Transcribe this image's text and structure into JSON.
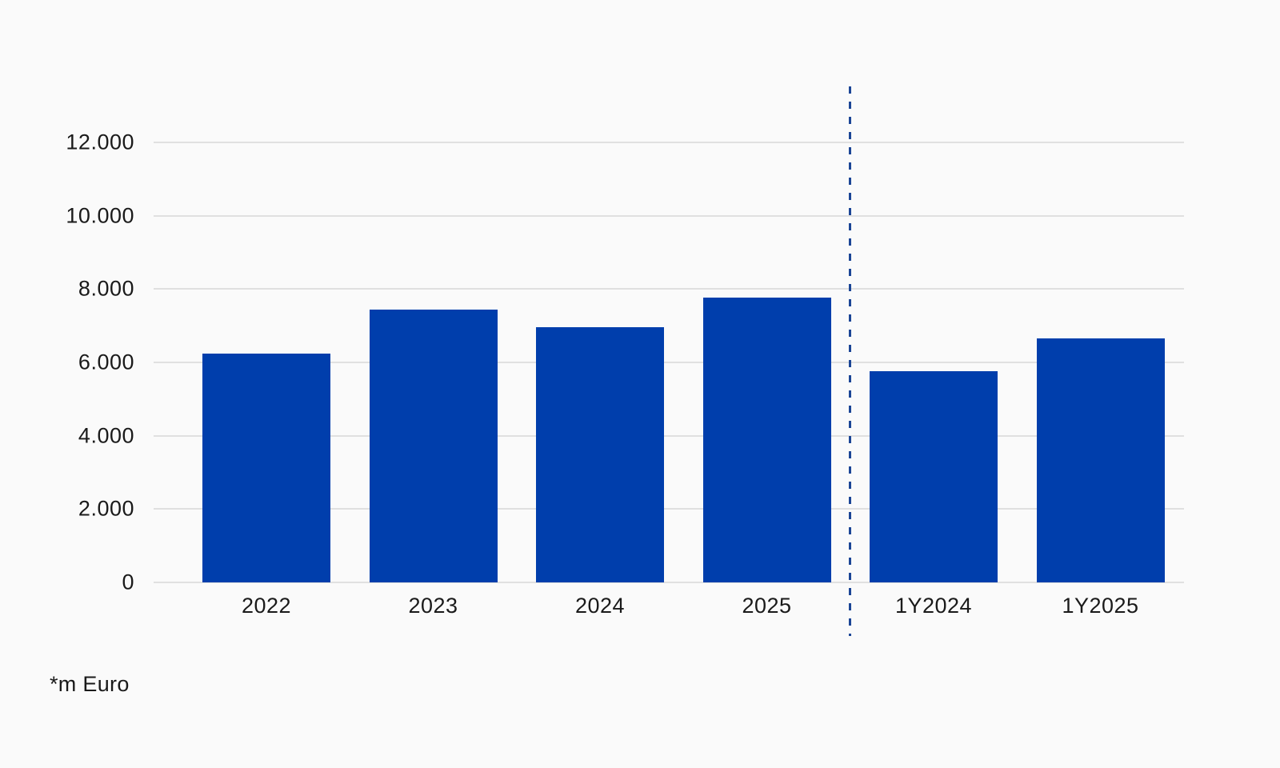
{
  "chart_data": {
    "type": "bar",
    "categories": [
      "2022",
      "2023",
      "2024",
      "2025",
      "1Y2024",
      "1Y2025"
    ],
    "values": [
      6230,
      7450,
      6950,
      7770,
      5760,
      6660
    ],
    "yticks": {
      "values": [
        0,
        2000,
        4000,
        6000,
        8000,
        10000,
        12000
      ],
      "labels": [
        "0",
        "2.000",
        "4.000",
        "6.000",
        "8.000",
        "10.000",
        "12.000"
      ]
    },
    "ylim": [
      0,
      12000
    ],
    "grid": true,
    "legend": false,
    "separator": {
      "between": [
        "2025",
        "1Y2024"
      ],
      "style": "dashed"
    },
    "footnote": "*m Euro",
    "colors": {
      "bar": "#003EAC",
      "separator": "#1B4596",
      "gridline": "#E0E0E0",
      "background": "#FAFAFA",
      "text": "#1A1A1A"
    }
  }
}
